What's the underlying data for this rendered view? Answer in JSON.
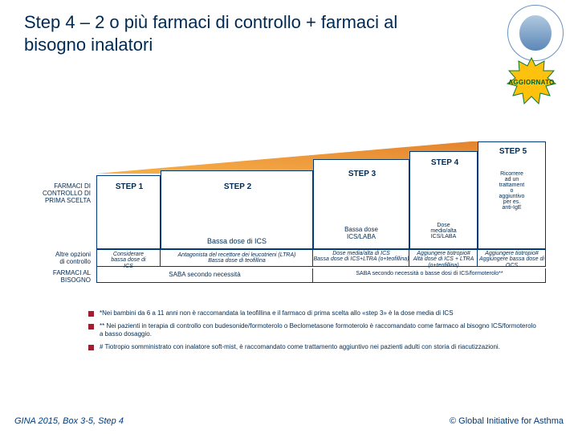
{
  "title": "Step 4 – 2 o più farmaci di controllo + farmaci al bisogno inalatori",
  "starburst": {
    "label": "AGGIORNATO",
    "fill": "#fec20e",
    "stroke": "#0b7a2e"
  },
  "logo": {
    "ring_color": "#6b92bf"
  },
  "chart": {
    "type": "step-diagram",
    "border_color": "#003a7a",
    "text_color": "#002a53",
    "background": "#ffffff",
    "row_labels": {
      "controller_first": "FARMACI DI\nCONTROLLO DI\nPRIMA SCELTA",
      "other_options": "Altre opzioni\ndi controllo",
      "reliever": "FARMACI AL\nBISOGNO"
    },
    "steps": [
      {
        "num": "STEP 1",
        "primary": "",
        "other": "Considerare\nbassa dose di\nICS"
      },
      {
        "num": "STEP 2",
        "primary": "Bassa dose di ICS",
        "other": "Antagonista del recettore dei leucotrieni (LTRA)\nBassa dose di teofillina"
      },
      {
        "num": "STEP 3",
        "primary": "Bassa dose\nICS/LABA",
        "other": "Dose media/alta di ICS\nBassa dose di ICS+LTRA (o+teofillina)"
      },
      {
        "num": "STEP 4",
        "primary": "Dose\nmedio/alta\nICS/LABA",
        "other": "Aggiungere tiotropio#\nAlta dose di ICS + LTRA (o+teofillina)"
      },
      {
        "num": "STEP 5",
        "primary": "Ricorrere\nad un\ntrattament\no\naggiuntivo\nper es.\nanti-IgE",
        "other": "Aggiungere tiotropio#\nAggiungere bassa dose di OCS"
      }
    ],
    "reliever_row": {
      "left": "SABA secondo necessità",
      "right": "SABA secondo necessità o basse dosi di ICS/formoterolo**"
    },
    "triangle_gradient": [
      "#f7b14a",
      "#e07b2a"
    ]
  },
  "footnotes": [
    "*Nei bambini da 6 a 11 anni non è raccomandata la teofillina e il farmaco di prima scelta allo «step 3» è la dose media di ICS",
    "** Nei pazienti in terapia di controllo con budesonide/formoterolo o Beclometasone formoterolo è raccomandato come farmaco al bisogno ICS/formoterolo a basso dosaggio.",
    "# Tiotropio somministrato con inalatore soft-mist, è raccomandato come trattamento aggiuntivo nei pazienti adulti con storia di riacutizzazioni."
  ],
  "footer": {
    "left": "GINA 2015, Box 3-5, Step 4",
    "right": "© Global Initiative for Asthma"
  }
}
